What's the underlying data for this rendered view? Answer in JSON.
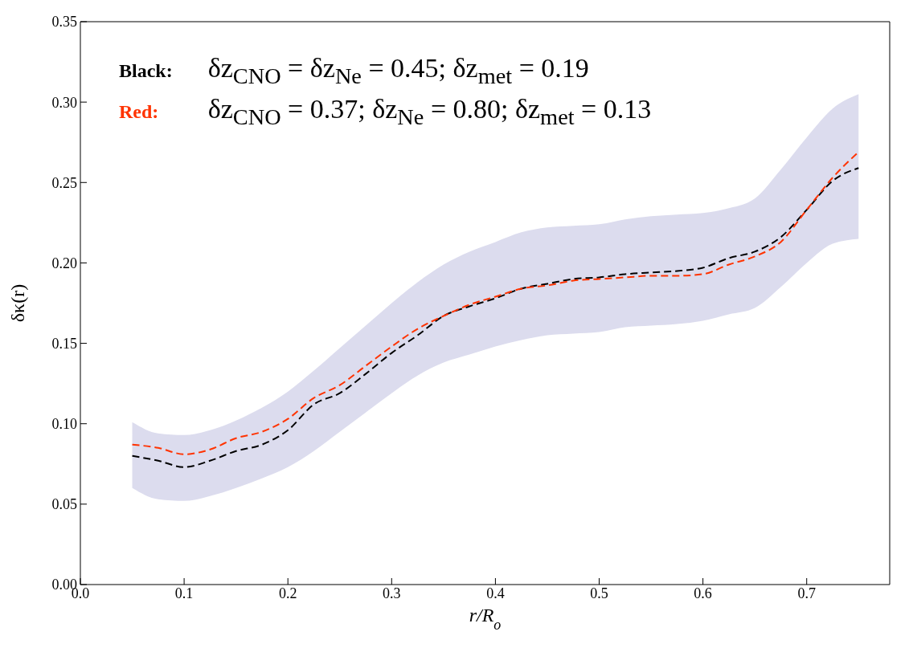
{
  "chart_data": {
    "type": "line",
    "xlabel": "r/R$_{o}$",
    "ylabel": "δκ(r)",
    "x": [
      0.05,
      0.075,
      0.1,
      0.125,
      0.15,
      0.175,
      0.2,
      0.225,
      0.25,
      0.275,
      0.3,
      0.325,
      0.35,
      0.375,
      0.4,
      0.425,
      0.45,
      0.475,
      0.5,
      0.525,
      0.55,
      0.575,
      0.6,
      0.625,
      0.65,
      0.675,
      0.7,
      0.725,
      0.75
    ],
    "series": [
      {
        "name": "Black:",
        "color": "#000000",
        "values": [
          0.08,
          0.077,
          0.073,
          0.077,
          0.083,
          0.087,
          0.096,
          0.112,
          0.119,
          0.131,
          0.144,
          0.155,
          0.167,
          0.173,
          0.178,
          0.184,
          0.187,
          0.19,
          0.191,
          0.193,
          0.194,
          0.195,
          0.197,
          0.203,
          0.207,
          0.216,
          0.233,
          0.251,
          0.259
        ],
        "lower": [
          0.06,
          0.053,
          0.052,
          0.055,
          0.06,
          0.066,
          0.073,
          0.083,
          0.095,
          0.107,
          0.119,
          0.13,
          0.138,
          0.143,
          0.148,
          0.152,
          0.155,
          0.156,
          0.157,
          0.16,
          0.161,
          0.162,
          0.164,
          0.168,
          0.172,
          0.185,
          0.2,
          0.212,
          0.215
        ],
        "upper": [
          0.101,
          0.094,
          0.093,
          0.096,
          0.102,
          0.11,
          0.12,
          0.133,
          0.147,
          0.161,
          0.175,
          0.188,
          0.199,
          0.207,
          0.213,
          0.219,
          0.222,
          0.223,
          0.224,
          0.227,
          0.229,
          0.23,
          0.231,
          0.234,
          0.24,
          0.258,
          0.278,
          0.296,
          0.305
        ]
      },
      {
        "name": "Red:",
        "color": "#ff3300",
        "values": [
          0.087,
          0.085,
          0.081,
          0.084,
          0.091,
          0.095,
          0.103,
          0.116,
          0.124,
          0.136,
          0.148,
          0.159,
          0.167,
          0.174,
          0.179,
          0.184,
          0.186,
          0.189,
          0.19,
          0.191,
          0.192,
          0.192,
          0.193,
          0.199,
          0.204,
          0.213,
          0.233,
          0.253,
          0.269
        ]
      }
    ],
    "annotations": [
      "δz$_{CNO}$ = δz$_{Ne}$ = 0.45;  δz$_{met}$ = 0.19",
      "δz$_{CNO}$ = 0.37;  δz$_{Ne}$ = 0.80;  δz$_{met}$ = 0.13"
    ],
    "xlim": [
      0,
      0.78
    ],
    "xticks": [
      {
        "value": 0,
        "label": "0.0"
      },
      {
        "value": 0.1,
        "label": "0.1"
      },
      {
        "value": 0.2,
        "label": "0.2"
      },
      {
        "value": 0.3,
        "label": "0.3"
      },
      {
        "value": 0.4,
        "label": "0.4"
      },
      {
        "value": 0.5,
        "label": "0.5"
      },
      {
        "value": 0.6,
        "label": "0.6"
      },
      {
        "value": 0.7,
        "label": "0.7"
      }
    ],
    "ylim": [
      0,
      0.35
    ],
    "yticks": [
      {
        "value": 0,
        "label": "0.00"
      },
      {
        "value": 0.05,
        "label": "0.05"
      },
      {
        "value": 0.1,
        "label": "0.10"
      },
      {
        "value": 0.15,
        "label": "0.15"
      },
      {
        "value": 0.2,
        "label": "0.20"
      },
      {
        "value": 0.25,
        "label": "0.25"
      },
      {
        "value": 0.3,
        "label": "0.30"
      },
      {
        "value": 0.35,
        "label": "0.35"
      }
    ],
    "grid": false,
    "legend": "top left",
    "line_style": "dashed",
    "marker": "none"
  }
}
